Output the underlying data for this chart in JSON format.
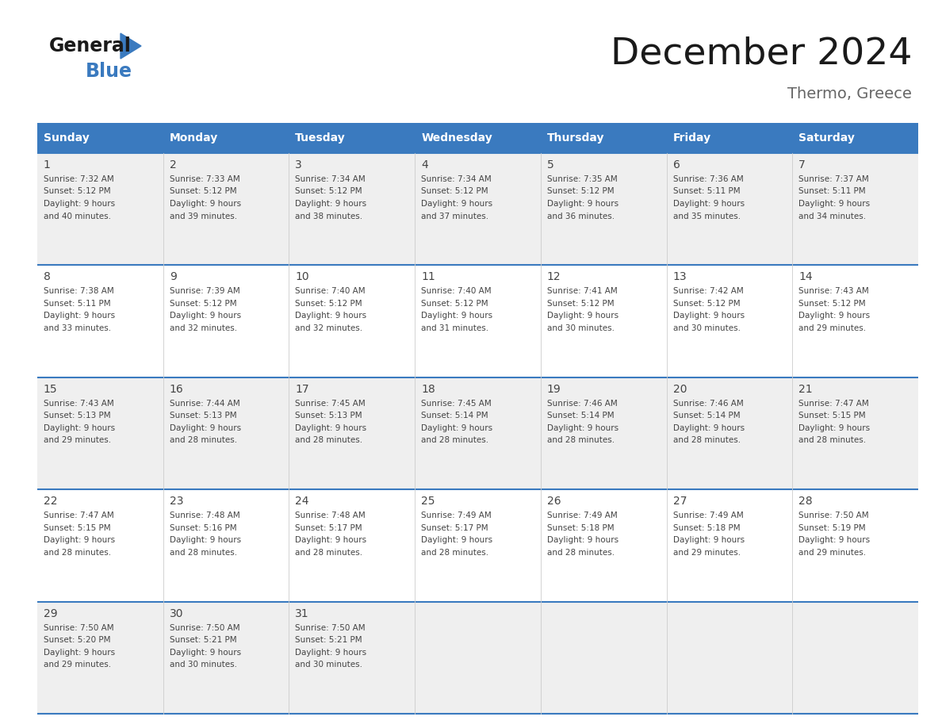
{
  "title": "December 2024",
  "subtitle": "Thermo, Greece",
  "header_bg": "#3a7abf",
  "header_text": "#ffffff",
  "row_bg_odd": "#efefef",
  "row_bg_even": "#ffffff",
  "cell_border_color": "#3a7abf",
  "cell_sep_color": "#cccccc",
  "day_names": [
    "Sunday",
    "Monday",
    "Tuesday",
    "Wednesday",
    "Thursday",
    "Friday",
    "Saturday"
  ],
  "weeks": [
    [
      {
        "day": "1",
        "sunrise": "7:32 AM",
        "sunset": "5:12 PM",
        "daylight_h": "9 hours",
        "daylight_m": "40 minutes."
      },
      {
        "day": "2",
        "sunrise": "7:33 AM",
        "sunset": "5:12 PM",
        "daylight_h": "9 hours",
        "daylight_m": "39 minutes."
      },
      {
        "day": "3",
        "sunrise": "7:34 AM",
        "sunset": "5:12 PM",
        "daylight_h": "9 hours",
        "daylight_m": "38 minutes."
      },
      {
        "day": "4",
        "sunrise": "7:34 AM",
        "sunset": "5:12 PM",
        "daylight_h": "9 hours",
        "daylight_m": "37 minutes."
      },
      {
        "day": "5",
        "sunrise": "7:35 AM",
        "sunset": "5:12 PM",
        "daylight_h": "9 hours",
        "daylight_m": "36 minutes."
      },
      {
        "day": "6",
        "sunrise": "7:36 AM",
        "sunset": "5:11 PM",
        "daylight_h": "9 hours",
        "daylight_m": "35 minutes."
      },
      {
        "day": "7",
        "sunrise": "7:37 AM",
        "sunset": "5:11 PM",
        "daylight_h": "9 hours",
        "daylight_m": "34 minutes."
      }
    ],
    [
      {
        "day": "8",
        "sunrise": "7:38 AM",
        "sunset": "5:11 PM",
        "daylight_h": "9 hours",
        "daylight_m": "33 minutes."
      },
      {
        "day": "9",
        "sunrise": "7:39 AM",
        "sunset": "5:12 PM",
        "daylight_h": "9 hours",
        "daylight_m": "32 minutes."
      },
      {
        "day": "10",
        "sunrise": "7:40 AM",
        "sunset": "5:12 PM",
        "daylight_h": "9 hours",
        "daylight_m": "32 minutes."
      },
      {
        "day": "11",
        "sunrise": "7:40 AM",
        "sunset": "5:12 PM",
        "daylight_h": "9 hours",
        "daylight_m": "31 minutes."
      },
      {
        "day": "12",
        "sunrise": "7:41 AM",
        "sunset": "5:12 PM",
        "daylight_h": "9 hours",
        "daylight_m": "30 minutes."
      },
      {
        "day": "13",
        "sunrise": "7:42 AM",
        "sunset": "5:12 PM",
        "daylight_h": "9 hours",
        "daylight_m": "30 minutes."
      },
      {
        "day": "14",
        "sunrise": "7:43 AM",
        "sunset": "5:12 PM",
        "daylight_h": "9 hours",
        "daylight_m": "29 minutes."
      }
    ],
    [
      {
        "day": "15",
        "sunrise": "7:43 AM",
        "sunset": "5:13 PM",
        "daylight_h": "9 hours",
        "daylight_m": "29 minutes."
      },
      {
        "day": "16",
        "sunrise": "7:44 AM",
        "sunset": "5:13 PM",
        "daylight_h": "9 hours",
        "daylight_m": "28 minutes."
      },
      {
        "day": "17",
        "sunrise": "7:45 AM",
        "sunset": "5:13 PM",
        "daylight_h": "9 hours",
        "daylight_m": "28 minutes."
      },
      {
        "day": "18",
        "sunrise": "7:45 AM",
        "sunset": "5:14 PM",
        "daylight_h": "9 hours",
        "daylight_m": "28 minutes."
      },
      {
        "day": "19",
        "sunrise": "7:46 AM",
        "sunset": "5:14 PM",
        "daylight_h": "9 hours",
        "daylight_m": "28 minutes."
      },
      {
        "day": "20",
        "sunrise": "7:46 AM",
        "sunset": "5:14 PM",
        "daylight_h": "9 hours",
        "daylight_m": "28 minutes."
      },
      {
        "day": "21",
        "sunrise": "7:47 AM",
        "sunset": "5:15 PM",
        "daylight_h": "9 hours",
        "daylight_m": "28 minutes."
      }
    ],
    [
      {
        "day": "22",
        "sunrise": "7:47 AM",
        "sunset": "5:15 PM",
        "daylight_h": "9 hours",
        "daylight_m": "28 minutes."
      },
      {
        "day": "23",
        "sunrise": "7:48 AM",
        "sunset": "5:16 PM",
        "daylight_h": "9 hours",
        "daylight_m": "28 minutes."
      },
      {
        "day": "24",
        "sunrise": "7:48 AM",
        "sunset": "5:17 PM",
        "daylight_h": "9 hours",
        "daylight_m": "28 minutes."
      },
      {
        "day": "25",
        "sunrise": "7:49 AM",
        "sunset": "5:17 PM",
        "daylight_h": "9 hours",
        "daylight_m": "28 minutes."
      },
      {
        "day": "26",
        "sunrise": "7:49 AM",
        "sunset": "5:18 PM",
        "daylight_h": "9 hours",
        "daylight_m": "28 minutes."
      },
      {
        "day": "27",
        "sunrise": "7:49 AM",
        "sunset": "5:18 PM",
        "daylight_h": "9 hours",
        "daylight_m": "29 minutes."
      },
      {
        "day": "28",
        "sunrise": "7:50 AM",
        "sunset": "5:19 PM",
        "daylight_h": "9 hours",
        "daylight_m": "29 minutes."
      }
    ],
    [
      {
        "day": "29",
        "sunrise": "7:50 AM",
        "sunset": "5:20 PM",
        "daylight_h": "9 hours",
        "daylight_m": "29 minutes."
      },
      {
        "day": "30",
        "sunrise": "7:50 AM",
        "sunset": "5:21 PM",
        "daylight_h": "9 hours",
        "daylight_m": "30 minutes."
      },
      {
        "day": "31",
        "sunrise": "7:50 AM",
        "sunset": "5:21 PM",
        "daylight_h": "9 hours",
        "daylight_m": "30 minutes."
      },
      null,
      null,
      null,
      null
    ]
  ],
  "logo_general_color": "#1a1a1a",
  "logo_blue_color": "#3a7abf",
  "title_color": "#1a1a1a",
  "subtitle_color": "#666666",
  "text_color": "#444444"
}
